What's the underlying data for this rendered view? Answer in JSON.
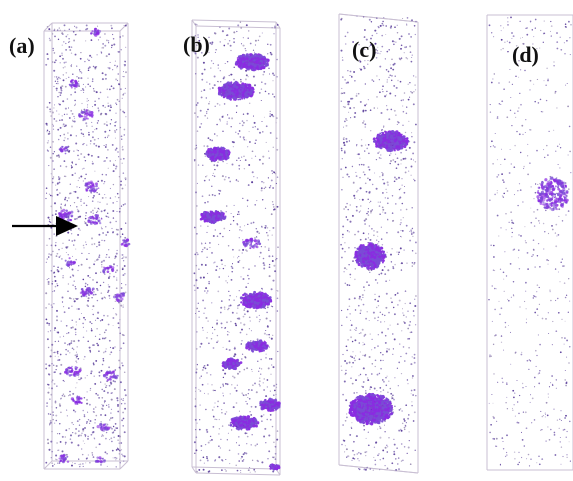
{
  "panels": [
    {
      "label": "(a)"
    },
    {
      "label": "(b)"
    },
    {
      "label": "(c)"
    },
    {
      "label": "(d)"
    }
  ],
  "colors": {
    "background": "#ffffff",
    "frame": "#c9bfd3",
    "atom": "#5a3d9a",
    "cluster": "#8a2be2",
    "cluster_dark": "#6a1fc4",
    "arrow": "#000000"
  }
}
